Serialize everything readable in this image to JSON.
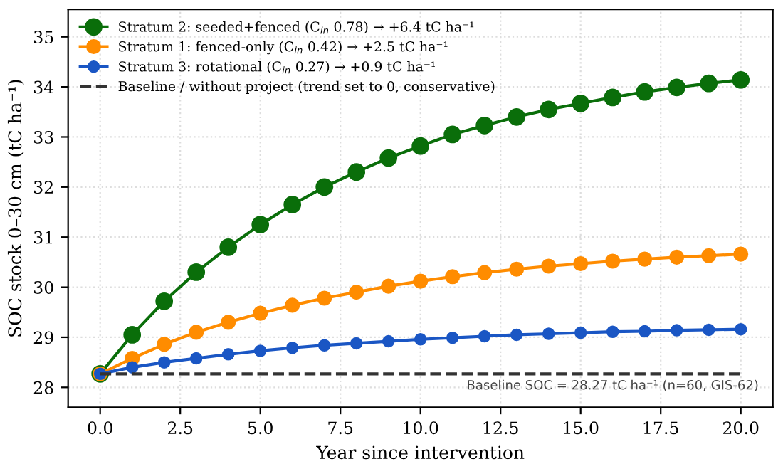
{
  "chart_data": {
    "type": "line",
    "xlabel": "Year since intervention",
    "ylabel": "SOC stock 0–30 cm (tC ha⁻¹)",
    "x": [
      0,
      1,
      2,
      3,
      4,
      5,
      6,
      7,
      8,
      9,
      10,
      11,
      12,
      13,
      14,
      15,
      16,
      17,
      18,
      19,
      20
    ],
    "series": [
      {
        "name": "Stratum 2: seeded+fenced (C$_{in}$ 0.78) → +6.4 tC ha⁻¹",
        "color": "#0a6e0a",
        "marker": "circle",
        "values": [
          28.27,
          29.05,
          29.72,
          30.3,
          30.8,
          31.25,
          31.65,
          32.0,
          32.3,
          32.58,
          32.82,
          33.05,
          33.23,
          33.4,
          33.55,
          33.67,
          33.79,
          33.9,
          33.99,
          34.07,
          34.14
        ]
      },
      {
        "name": "Stratum 1: fenced-only (C$_{in}$ 0.42) → +2.5 tC ha⁻¹",
        "color": "#ff8c00",
        "marker": "circle",
        "values": [
          28.27,
          28.58,
          28.86,
          29.1,
          29.3,
          29.48,
          29.64,
          29.78,
          29.9,
          30.02,
          30.12,
          30.21,
          30.29,
          30.36,
          30.42,
          30.47,
          30.52,
          30.56,
          30.6,
          30.63,
          30.66
        ]
      },
      {
        "name": "Stratum 3: rotational (C$_{in}$ 0.27) → +0.9 tC ha⁻¹",
        "color": "#1a56c4",
        "marker": "circle",
        "values": [
          28.27,
          28.4,
          28.5,
          28.58,
          28.66,
          28.73,
          28.79,
          28.84,
          28.88,
          28.92,
          28.96,
          28.99,
          29.02,
          29.05,
          29.07,
          29.09,
          29.11,
          29.12,
          29.14,
          29.15,
          29.16
        ]
      },
      {
        "name": "Baseline / without project (trend set to 0, conservative)",
        "color": "#333333",
        "marker": "none",
        "line_style": "dashed",
        "values": [
          28.27,
          28.27,
          28.27,
          28.27,
          28.27,
          28.27,
          28.27,
          28.27,
          28.27,
          28.27,
          28.27,
          28.27,
          28.27,
          28.27,
          28.27,
          28.27,
          28.27,
          28.27,
          28.27,
          28.27,
          28.27
        ]
      }
    ],
    "annotations": [
      {
        "text": "Baseline SOC = 28.27 tC ha⁻¹ (n=60, GIS-62)",
        "x": 16,
        "y": 28.27
      }
    ],
    "xlim": [
      -1,
      21
    ],
    "ylim": [
      27.6,
      35.55
    ],
    "xticks": [
      {
        "value": 0,
        "label": "0.0"
      },
      {
        "value": 2.5,
        "label": "2.5"
      },
      {
        "value": 5,
        "label": "5.0"
      },
      {
        "value": 7.5,
        "label": "7.5"
      },
      {
        "value": 10,
        "label": "10.0"
      },
      {
        "value": 12.5,
        "label": "12.5"
      },
      {
        "value": 15,
        "label": "15.0"
      },
      {
        "value": 17.5,
        "label": "17.5"
      },
      {
        "value": 20,
        "label": "20.0"
      }
    ],
    "yticks": [
      28,
      29,
      30,
      31,
      32,
      33,
      34,
      35
    ],
    "grid": true,
    "legend": "top left"
  }
}
